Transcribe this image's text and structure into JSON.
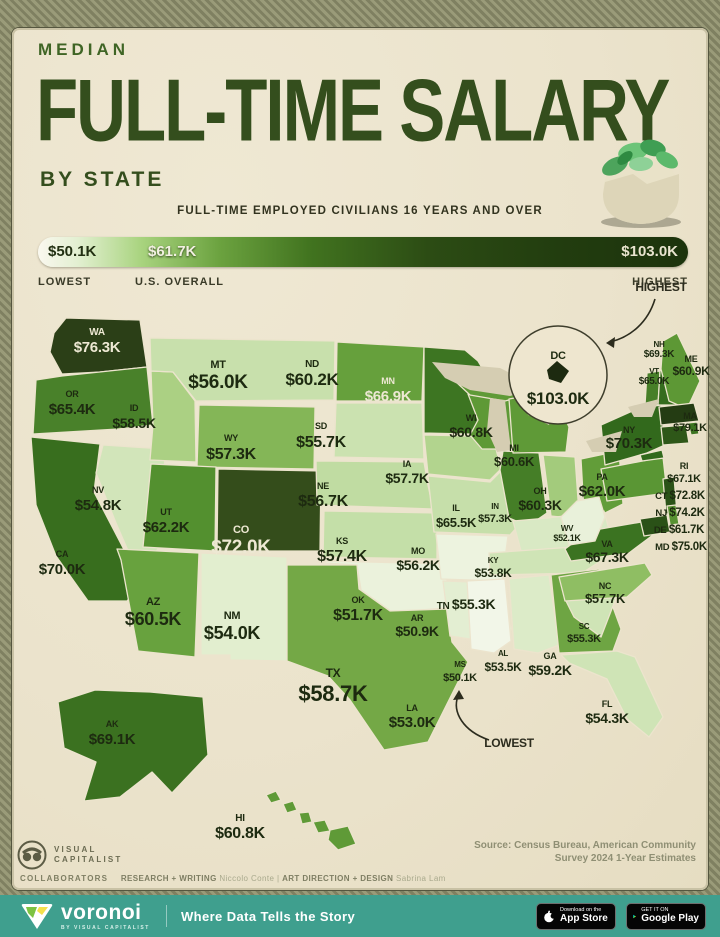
{
  "header": {
    "kicker": "MEDIAN",
    "title": "FULL-TIME SALARY",
    "by_state": "BY STATE",
    "subtitle": "FULL-TIME EMPLOYED CIVILIANS 16 YEARS AND OVER"
  },
  "legend": {
    "stops": [
      {
        "value": "$50.1K",
        "label": "LOWEST"
      },
      {
        "value": "$61.7K",
        "label": "U.S. OVERALL"
      },
      {
        "value": "$103.0K",
        "label": "HIGHEST"
      }
    ]
  },
  "annotations": {
    "highest": "HIGHEST",
    "lowest": "LOWEST"
  },
  "chart_data": {
    "type": "choropleth-map",
    "title": "Median Full-Time Salary by State",
    "unit": "USD (thousands), median full-time salary",
    "lowest_state": "MS",
    "highest_state": "DC",
    "states": [
      {
        "abbr": "WA",
        "name": "Washington",
        "display": "$76.3K",
        "value": 76.3,
        "color": "#2b3f17"
      },
      {
        "abbr": "OR",
        "name": "Oregon",
        "display": "$65.4K",
        "value": 65.4,
        "color": "#49812a"
      },
      {
        "abbr": "CA",
        "name": "California",
        "display": "$70.0K",
        "value": 70.0,
        "color": "#386e1e"
      },
      {
        "abbr": "NV",
        "name": "Nevada",
        "display": "$54.8K",
        "value": 54.8,
        "color": "#d2e5ba"
      },
      {
        "abbr": "ID",
        "name": "Idaho",
        "display": "$58.5K",
        "value": 58.5,
        "color": "#abd083"
      },
      {
        "abbr": "MT",
        "name": "Montana",
        "display": "$56.0K",
        "value": 56.0,
        "color": "#c8e0ac"
      },
      {
        "abbr": "WY",
        "name": "Wyoming",
        "display": "$57.3K",
        "value": 57.3,
        "color": "#84b657"
      },
      {
        "abbr": "UT",
        "name": "Utah",
        "display": "$62.2K",
        "value": 62.2,
        "color": "#53902f"
      },
      {
        "abbr": "CO",
        "name": "Colorado",
        "display": "$72.0K",
        "value": 72.0,
        "color": "#344d1b"
      },
      {
        "abbr": "AZ",
        "name": "Arizona",
        "display": "$60.5K",
        "value": 60.5,
        "color": "#68a23e"
      },
      {
        "abbr": "NM",
        "name": "New Mexico",
        "display": "$54.0K",
        "value": 54.0,
        "color": "#e2eecf"
      },
      {
        "abbr": "ND",
        "name": "North Dakota",
        "display": "$60.2K",
        "value": 60.2,
        "color": "#66a03c"
      },
      {
        "abbr": "SD",
        "name": "South Dakota",
        "display": "$55.7K",
        "value": 55.7,
        "color": "#cbe2b0"
      },
      {
        "abbr": "NE",
        "name": "Nebraska",
        "display": "$56.7K",
        "value": 56.7,
        "color": "#c0dca2"
      },
      {
        "abbr": "KS",
        "name": "Kansas",
        "display": "$57.4K",
        "value": 57.4,
        "color": "#c4dfa8"
      },
      {
        "abbr": "OK",
        "name": "Oklahoma",
        "display": "$51.7K",
        "value": 51.7,
        "color": "#ebf2dc"
      },
      {
        "abbr": "TX",
        "name": "Texas",
        "display": "$58.7K",
        "value": 58.7,
        "color": "#74a846"
      },
      {
        "abbr": "MN",
        "name": "Minnesota",
        "display": "$66.9K",
        "value": 66.9,
        "color": "#3d7522"
      },
      {
        "abbr": "IA",
        "name": "Iowa",
        "display": "$57.7K",
        "value": 57.7,
        "color": "#b2d48e"
      },
      {
        "abbr": "MO",
        "name": "Missouri",
        "display": "$56.2K",
        "value": 56.2,
        "color": "#c6dfaa"
      },
      {
        "abbr": "AR",
        "name": "Arkansas",
        "display": "$50.9K",
        "value": 50.9,
        "color": "#edf3df"
      },
      {
        "abbr": "LA",
        "name": "Louisiana",
        "display": "$53.0K",
        "value": 53.0,
        "color": "#e3eed2"
      },
      {
        "abbr": "WI",
        "name": "Wisconsin",
        "display": "$60.8K",
        "value": 60.8,
        "color": "#5e9936"
      },
      {
        "abbr": "IL",
        "name": "Illinois",
        "display": "$65.5K",
        "value": 65.5,
        "color": "#457e27"
      },
      {
        "abbr": "IN",
        "name": "Indiana",
        "display": "$57.3K",
        "value": 57.3,
        "color": "#a3cb7c"
      },
      {
        "abbr": "MI",
        "name": "Michigan",
        "display": "$60.6K",
        "value": 60.6,
        "color": "#5f9a37"
      },
      {
        "abbr": "OH",
        "name": "Ohio",
        "display": "$60.3K",
        "value": 60.3,
        "color": "#629d39"
      },
      {
        "abbr": "KY",
        "name": "Kentucky",
        "display": "$53.8K",
        "value": 53.8,
        "color": "#d9e9c4"
      },
      {
        "abbr": "TN",
        "name": "Tennessee",
        "display": "$55.3K",
        "value": 55.3,
        "color": "#cfe4b6"
      },
      {
        "abbr": "MS",
        "name": "Mississippi",
        "display": "$50.1K",
        "value": 50.1,
        "color": "#f2f6e8"
      },
      {
        "abbr": "AL",
        "name": "Alabama",
        "display": "$53.5K",
        "value": 53.5,
        "color": "#dcebc8"
      },
      {
        "abbr": "GA",
        "name": "Georgia",
        "display": "$59.2K",
        "value": 59.2,
        "color": "#6ea543"
      },
      {
        "abbr": "FL",
        "name": "Florida",
        "display": "$54.3K",
        "value": 54.3,
        "color": "#cfe4b6"
      },
      {
        "abbr": "SC",
        "name": "South Carolina",
        "display": "$55.3K",
        "value": 55.3,
        "color": "#cfe4b6"
      },
      {
        "abbr": "NC",
        "name": "North Carolina",
        "display": "$57.7K",
        "value": 57.7,
        "color": "#8fbe63"
      },
      {
        "abbr": "VA",
        "name": "Virginia",
        "display": "$67.3K",
        "value": 67.3,
        "color": "#3b7321"
      },
      {
        "abbr": "WV",
        "name": "West Virginia",
        "display": "$52.1K",
        "value": 52.1,
        "color": "#e9f1da"
      },
      {
        "abbr": "PA",
        "name": "Pennsylvania",
        "display": "$62.0K",
        "value": 62.0,
        "color": "#5a9634"
      },
      {
        "abbr": "NY",
        "name": "New York",
        "display": "$70.3K",
        "value": 70.3,
        "color": "#32691c"
      },
      {
        "abbr": "NJ",
        "name": "New Jersey",
        "display": "$74.2K",
        "value": 74.2,
        "color": "#2b5318"
      },
      {
        "abbr": "DE",
        "name": "Delaware",
        "display": "$61.7K",
        "value": 61.7,
        "color": "#579232"
      },
      {
        "abbr": "MD",
        "name": "Maryland",
        "display": "$75.0K",
        "value": 75.0,
        "color": "#2a5117"
      },
      {
        "abbr": "DC",
        "name": "District of Columbia",
        "display": "$103.0K",
        "value": 103.0,
        "color": "#1a2a0e"
      },
      {
        "abbr": "VT",
        "name": "Vermont",
        "display": "$65.0K",
        "value": 65.0,
        "color": "#477f28"
      },
      {
        "abbr": "NH",
        "name": "New Hampshire",
        "display": "$69.3K",
        "value": 69.3,
        "color": "#356c1e"
      },
      {
        "abbr": "ME",
        "name": "Maine",
        "display": "$60.9K",
        "value": 60.9,
        "color": "#5d9835"
      },
      {
        "abbr": "MA",
        "name": "Massachusetts",
        "display": "$79.1K",
        "value": 79.1,
        "color": "#243c13"
      },
      {
        "abbr": "RI",
        "name": "Rhode Island",
        "display": "$67.1K",
        "value": 67.1,
        "color": "#3c7421"
      },
      {
        "abbr": "CT",
        "name": "Connecticut",
        "display": "$72.8K",
        "value": 72.8,
        "color": "#2e5718"
      },
      {
        "abbr": "AK",
        "name": "Alaska",
        "display": "$69.1K",
        "value": 69.1,
        "color": "#3b7120"
      },
      {
        "abbr": "HI",
        "name": "Hawaii",
        "display": "$60.8K",
        "value": 60.8,
        "color": "#5f9a37"
      }
    ]
  },
  "attribution": {
    "brand_line1": "VISUAL",
    "brand_line2": "CAPITALIST",
    "collaborators_label": "COLLABORATORS",
    "credits": [
      {
        "role": "RESEARCH + WRITING",
        "name": "Niccolo Conte"
      },
      {
        "role": "ART DIRECTION + DESIGN",
        "name": "Sabrina Lam"
      }
    ],
    "source_line1": "Source: Census Bureau, American Community",
    "source_line2": "Survey 2024 1-Year Estimates"
  },
  "bottom_bar": {
    "logo_text": "voronoi",
    "logo_sub": "BY VISUAL CAPITALIST",
    "tagline": "Where Data Tells the Story",
    "badges": [
      {
        "pre": "Download on the",
        "name": "App Store"
      },
      {
        "pre": "GET IT ON",
        "name": "Google Play"
      }
    ]
  },
  "colors": {
    "parchment": "#ebe3cc",
    "frame": "#8f906c",
    "title_green": "#344e1d",
    "kicker_green": "#3f6525",
    "teal": "#3f9f8e",
    "label_dark": "#1d2a10",
    "label_light": "#ede8d3",
    "lake": "#d5cdb2",
    "state_border": "#ece4cd"
  }
}
